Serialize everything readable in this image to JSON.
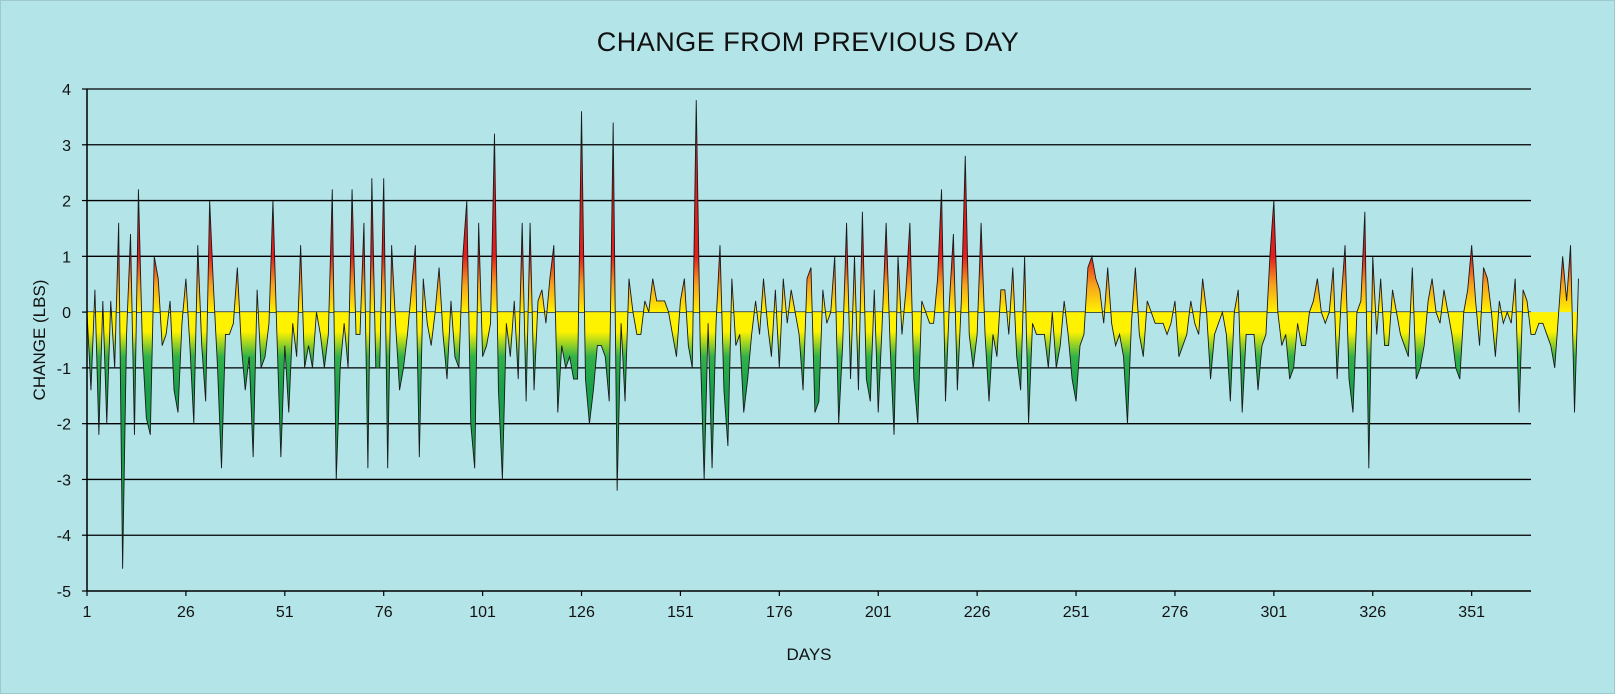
{
  "chart_data": {
    "type": "area",
    "title": "CHANGE  FROM  PREVIOUS  DAY",
    "xlabel": "DAYS",
    "ylabel": "CHANGE (LBS)",
    "ylim": [
      -5,
      4
    ],
    "yticks": [
      4,
      3,
      2,
      1,
      0,
      -1,
      -2,
      -3,
      -4,
      -5
    ],
    "xlim": [
      1,
      366
    ],
    "xticks": [
      1,
      26,
      51,
      76,
      101,
      126,
      151,
      176,
      201,
      226,
      251,
      276,
      301,
      326,
      351
    ],
    "grid": true,
    "fill_gradient": {
      "positive": [
        "#e41d1d",
        "#f7a01e",
        "#fff200"
      ],
      "negative": [
        "#fff200",
        "#31b24a",
        "#18a04a"
      ]
    },
    "series": [
      {
        "name": "Change",
        "values": [
          0,
          -1.4,
          0.4,
          -2.2,
          0.2,
          -2.0,
          0.2,
          -1.0,
          1.6,
          -4.6,
          -0.4,
          1.4,
          -2.2,
          2.2,
          -0.6,
          -1.9,
          -2.2,
          1.0,
          0.6,
          -0.6,
          -0.4,
          0.2,
          -1.4,
          -1.8,
          -0.2,
          0.6,
          -0.6,
          -2.0,
          1.2,
          -0.6,
          -1.6,
          2.0,
          0.4,
          -1.0,
          -2.8,
          -0.4,
          -0.4,
          -0.2,
          0.8,
          -0.6,
          -1.4,
          -0.8,
          -2.6,
          0.4,
          -1.0,
          -0.8,
          -0.2,
          2.0,
          -0.4,
          -2.6,
          -0.6,
          -1.8,
          -0.2,
          -0.8,
          1.2,
          -1.0,
          -0.6,
          -1.0,
          0,
          -0.4,
          -1.0,
          -0.4,
          2.2,
          -3.0,
          -1.0,
          -0.2,
          -1.0,
          2.2,
          -0.4,
          -0.4,
          1.6,
          -2.8,
          2.4,
          -1.0,
          -1.0,
          2.4,
          -2.8,
          1.2,
          -0.2,
          -1.4,
          -1.0,
          -0.4,
          0.4,
          1.2,
          -2.6,
          0.6,
          -0.2,
          -0.6,
          0,
          0.8,
          -0.4,
          -1.2,
          0.2,
          -0.8,
          -1.0,
          1.0,
          2.0,
          -2.0,
          -2.8,
          1.6,
          -0.8,
          -0.6,
          -0.2,
          3.2,
          -1.4,
          -3.0,
          -0.2,
          -0.8,
          0.2,
          -1.2,
          1.6,
          -1.6,
          1.6,
          -1.4,
          0.2,
          0.4,
          -0.2,
          0.6,
          1.2,
          -1.8,
          -0.6,
          -1.0,
          -0.8,
          -1.2,
          -1.2,
          3.6,
          -1.2,
          -2.0,
          -1.4,
          -0.6,
          -0.6,
          -0.8,
          -1.6,
          3.4,
          -3.2,
          -0.2,
          -1.6,
          0.6,
          0,
          -0.4,
          -0.4,
          0.2,
          0,
          0.6,
          0.2,
          0.2,
          0.2,
          0,
          -0.4,
          -0.8,
          0.2,
          0.6,
          -0.6,
          -1.0,
          3.8,
          -0.6,
          -3.0,
          -0.2,
          -2.8,
          -0.2,
          1.2,
          -1.4,
          -2.4,
          0.6,
          -0.6,
          -0.4,
          -1.8,
          -1.2,
          -0.4,
          0.2,
          -0.4,
          0.6,
          -0.2,
          -0.8,
          0.4,
          -1.0,
          0.6,
          -0.2,
          0.4,
          0,
          -0.4,
          -1.4,
          0.6,
          0.8,
          -1.8,
          -1.6,
          0.4,
          -0.2,
          0,
          1.0,
          -2.0,
          -0.6,
          1.6,
          -1.2,
          1.0,
          -1.4,
          1.8,
          -1.2,
          -1.6,
          0.4,
          -1.8,
          -0.2,
          1.6,
          -0.6,
          -2.2,
          1.0,
          -0.4,
          0.4,
          1.6,
          -1.2,
          -2.0,
          0.2,
          0,
          -0.2,
          -0.2,
          0.6,
          2.2,
          -1.6,
          0.2,
          1.4,
          -1.4,
          0.2,
          2.8,
          -0.4,
          -1.0,
          -0.4,
          1.6,
          -0.4,
          -1.6,
          -0.4,
          -0.8,
          0.4,
          0.4,
          -0.4,
          0.8,
          -0.8,
          -1.4,
          1.0,
          -2.0,
          -0.2,
          -0.4,
          -0.4,
          -0.4,
          -1.0,
          0,
          -1.0,
          -0.6,
          0.2,
          -0.4,
          -1.2,
          -1.6,
          -0.6,
          -0.4,
          0.8,
          1.0,
          0.6,
          0.4,
          -0.2,
          0.8,
          -0.2,
          -0.6,
          -0.4,
          -0.8,
          -2.0,
          -0.2,
          0.8,
          -0.4,
          -0.8,
          0.2,
          0,
          -0.2,
          -0.2,
          -0.2,
          -0.4,
          -0.2,
          0.2,
          -0.8,
          -0.6,
          -0.4,
          0.2,
          -0.2,
          -0.4,
          0.6,
          0,
          -1.2,
          -0.4,
          -0.2,
          0,
          -0.4,
          -1.6,
          0,
          0.4,
          -1.8,
          -0.4,
          -0.4,
          -0.4,
          -1.4,
          -0.6,
          -0.4,
          1.0,
          2.0,
          0,
          -0.6,
          -0.4,
          -1.2,
          -1.0,
          -0.2,
          -0.6,
          -0.6,
          0,
          0.2,
          0.6,
          0,
          -0.2,
          0,
          0.8,
          -1.2,
          0.2,
          1.2,
          -1.2,
          -1.8,
          0,
          0.2,
          1.8,
          -2.8,
          1.0,
          -0.4,
          0.6,
          -0.6,
          -0.6,
          0.4,
          0,
          -0.4,
          -0.6,
          -0.8,
          0.8,
          -1.2,
          -1.0,
          -0.6,
          0.2,
          0.6,
          0,
          -0.2,
          0.4,
          0,
          -0.4,
          -1.0,
          -1.2,
          0,
          0.4,
          1.2,
          0.2,
          -0.6,
          0.8,
          0.6,
          0,
          -0.8,
          0.2,
          -0.2,
          0,
          -0.2,
          0.6,
          -1.8,
          0.4,
          0.2,
          -0.4,
          -0.4,
          -0.2,
          -0.2,
          -0.4,
          -0.6,
          -1.0,
          0,
          1.0,
          0.2,
          1.2,
          -1.8,
          0.6
        ]
      }
    ]
  }
}
